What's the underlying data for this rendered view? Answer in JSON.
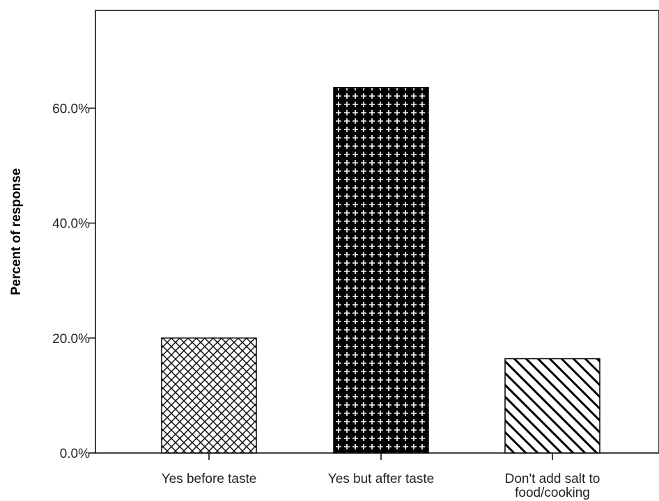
{
  "chart_data": {
    "type": "bar",
    "title": "",
    "xlabel": "",
    "ylabel": "Percent of response",
    "categories": [
      "Yes before taste",
      "Yes but after taste",
      "Don't add salt to food/cooking"
    ],
    "category_lines": [
      [
        "Yes before taste"
      ],
      [
        "Yes but after taste"
      ],
      [
        "Don't add salt to",
        "food/cooking"
      ]
    ],
    "values": [
      20.0,
      63.6,
      16.4
    ],
    "ylim": [
      0,
      77
    ],
    "yticks": [
      0,
      20,
      40,
      60
    ],
    "ytick_labels": [
      "0.0%",
      "20.0%",
      "40.0%",
      "60.0%"
    ],
    "bar_fills": [
      "crosshatch",
      "dotted-cross",
      "diagonal-stripes"
    ],
    "grid": false,
    "legend": "none"
  }
}
